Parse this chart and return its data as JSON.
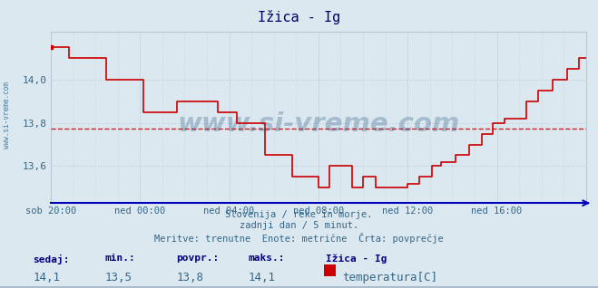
{
  "title": "Ižica - Ig",
  "background_color": "#dce8f0",
  "plot_bg_color": "#dce8f0",
  "line_color": "#cc0000",
  "dashed_line_color": "#cc0000",
  "avg_value": 13.775,
  "ylim": [
    13.43,
    14.22
  ],
  "yticks": [
    13.6,
    13.8,
    14.0
  ],
  "xlim_hours": [
    0,
    288
  ],
  "xtick_positions": [
    0,
    48,
    96,
    144,
    192,
    240,
    288
  ],
  "xtick_labels": [
    "sob 20:00",
    "ned 00:00",
    "ned 04:00",
    "ned 08:00",
    "ned 12:00",
    "ned 16:00",
    ""
  ],
  "grid_color": "#b8c8d8",
  "watermark_text": "www.si-vreme.com",
  "watermark_color": "#1a4a7a",
  "subtitle1": "Slovenija / reke in morje.",
  "subtitle2": "zadnji dan / 5 minut.",
  "subtitle3": "Meritve: trenutne  Enote: metrične  Črta: povprečje",
  "legend_entries": [
    {
      "label": "sedaj:",
      "value": "14,1"
    },
    {
      "label": "min.:",
      "value": "13,5"
    },
    {
      "label": "povpr.:",
      "value": "13,8"
    },
    {
      "label": "maks.:",
      "value": "14,1"
    }
  ],
  "series_label": "Ižica - Ig",
  "series_unit": "temperatura[C]",
  "series_color": "#cc0000",
  "title_color": "#000066",
  "subtitle_color": "#336688",
  "legend_label_color": "#000080",
  "legend_value_color": "#336688",
  "data_x": [
    0,
    10,
    10,
    30,
    30,
    50,
    50,
    68,
    68,
    90,
    90,
    100,
    100,
    115,
    115,
    130,
    130,
    144,
    144,
    150,
    150,
    162,
    162,
    168,
    168,
    175,
    175,
    192,
    192,
    198,
    198,
    205,
    205,
    210,
    210,
    218,
    218,
    225,
    225,
    232,
    232,
    238,
    238,
    244,
    244,
    256,
    256,
    262,
    262,
    270,
    270,
    278,
    278,
    284,
    284,
    288
  ],
  "data_y": [
    14.15,
    14.15,
    14.1,
    14.1,
    14.0,
    14.0,
    13.85,
    13.85,
    13.9,
    13.9,
    13.85,
    13.85,
    13.8,
    13.8,
    13.65,
    13.65,
    13.55,
    13.55,
    13.5,
    13.5,
    13.6,
    13.6,
    13.5,
    13.5,
    13.55,
    13.55,
    13.5,
    13.5,
    13.52,
    13.52,
    13.55,
    13.55,
    13.6,
    13.6,
    13.62,
    13.62,
    13.65,
    13.65,
    13.7,
    13.7,
    13.75,
    13.75,
    13.8,
    13.8,
    13.82,
    13.82,
    13.9,
    13.9,
    13.95,
    13.95,
    14.0,
    14.0,
    14.05,
    14.05,
    14.1,
    14.1
  ]
}
